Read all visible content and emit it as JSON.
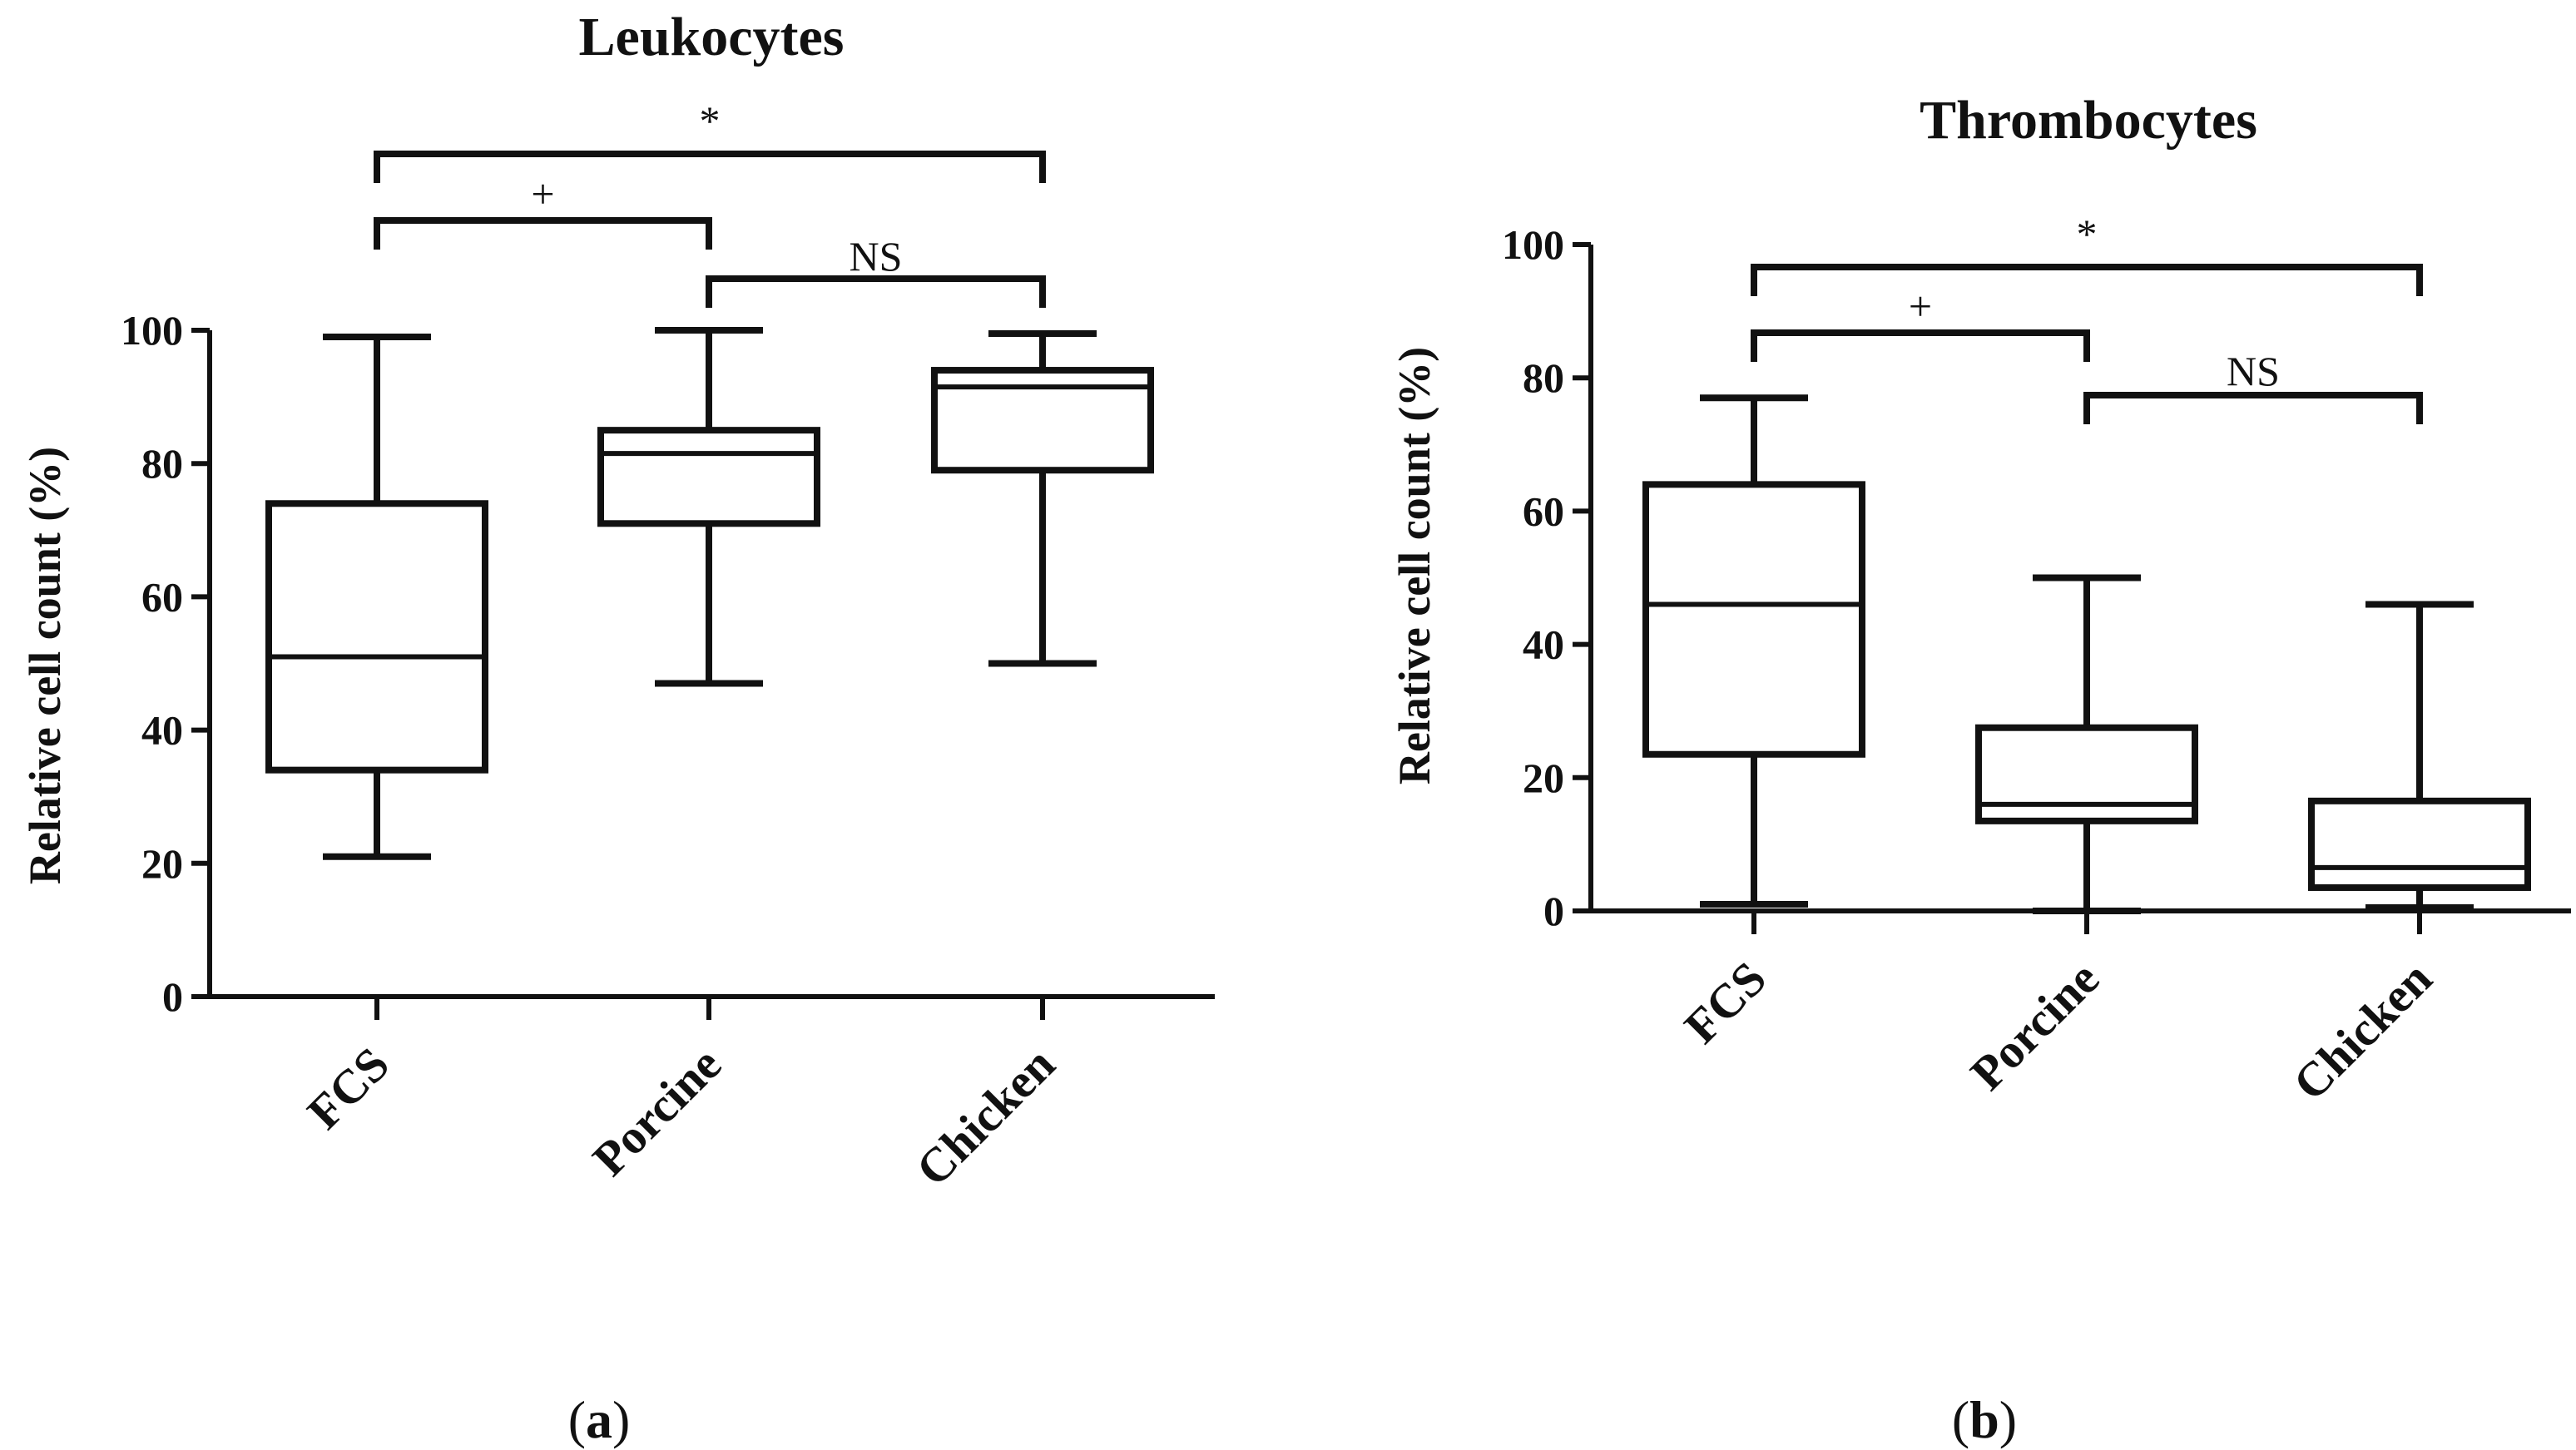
{
  "chart_data": [
    {
      "type": "box",
      "title": "Leukocytes",
      "xlabel": "",
      "ylabel": "Relative cell count (%)",
      "ylim": [
        0,
        100
      ],
      "yticks": [
        "0",
        "20",
        "40",
        "60",
        "80",
        "100"
      ],
      "categories": [
        "FCS",
        "Porcine",
        "Chicken"
      ],
      "boxes": [
        {
          "name": "FCS",
          "min": 21,
          "q1": 34,
          "median": 51,
          "q3": 74,
          "max": 99
        },
        {
          "name": "Porcine",
          "min": 47,
          "q1": 71,
          "median": 81.5,
          "q3": 85,
          "max": 100
        },
        {
          "name": "Chicken",
          "min": 50,
          "q1": 79,
          "median": 91.5,
          "q3": 94,
          "max": 99.5
        }
      ],
      "comparisons": [
        {
          "from": 0,
          "to": 2,
          "label": "*"
        },
        {
          "from": 0,
          "to": 1,
          "label": "+"
        },
        {
          "from": 1,
          "to": 2,
          "label": "NS"
        }
      ],
      "panel_label": {
        "open": "(",
        "letter": "a",
        "close": ")"
      }
    },
    {
      "type": "box",
      "title": "Thrombocytes",
      "xlabel": "",
      "ylabel": "Relative cell count (%)",
      "ylim": [
        0,
        100
      ],
      "yticks": [
        "0",
        "20",
        "40",
        "60",
        "80",
        "100"
      ],
      "categories": [
        "FCS",
        "Porcine",
        "Chicken"
      ],
      "boxes": [
        {
          "name": "FCS",
          "min": 1,
          "q1": 23.5,
          "median": 46,
          "q3": 64,
          "max": 77
        },
        {
          "name": "Porcine",
          "min": 0,
          "q1": 13.5,
          "median": 16,
          "q3": 27.5,
          "max": 50
        },
        {
          "name": "Chicken",
          "min": 0.5,
          "q1": 3.5,
          "median": 6.5,
          "q3": 16.5,
          "max": 46
        }
      ],
      "comparisons": [
        {
          "from": 0,
          "to": 2,
          "label": "*"
        },
        {
          "from": 0,
          "to": 1,
          "label": "+"
        },
        {
          "from": 1,
          "to": 2,
          "label": "NS"
        }
      ],
      "panel_label": {
        "open": "(",
        "letter": "b",
        "close": ")"
      }
    }
  ]
}
